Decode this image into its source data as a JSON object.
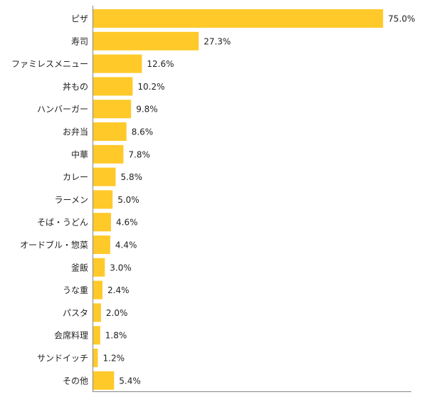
{
  "chart_data": {
    "type": "bar",
    "orientation": "horizontal",
    "categories": [
      "ピザ",
      "寿司",
      "ファミレスメニュー",
      "丼もの",
      "ハンバーガー",
      "お弁当",
      "中華",
      "カレー",
      "ラーメン",
      "そば・うどん",
      "オードブル・惣菜",
      "釜飯",
      "うな重",
      "パスタ",
      "会席料理",
      "サンドイッチ",
      "その他"
    ],
    "values": [
      75.0,
      27.3,
      12.6,
      10.2,
      9.8,
      8.6,
      7.8,
      5.8,
      5.0,
      4.6,
      4.4,
      3.0,
      2.4,
      2.0,
      1.8,
      1.2,
      5.4
    ],
    "value_labels": [
      "75.0%",
      "27.3%",
      "12.6%",
      "10.2%",
      "9.8%",
      "8.6%",
      "7.8%",
      "5.8%",
      "5.0%",
      "4.6%",
      "4.4%",
      "3.0%",
      "2.4%",
      "2.0%",
      "1.8%",
      "1.2%",
      "5.4%"
    ],
    "xlim": [
      0,
      82.5
    ],
    "grid": false,
    "legend": "none",
    "colors": {
      "bar": "#FFC929",
      "axis": "#888888",
      "text": "#222222"
    }
  }
}
